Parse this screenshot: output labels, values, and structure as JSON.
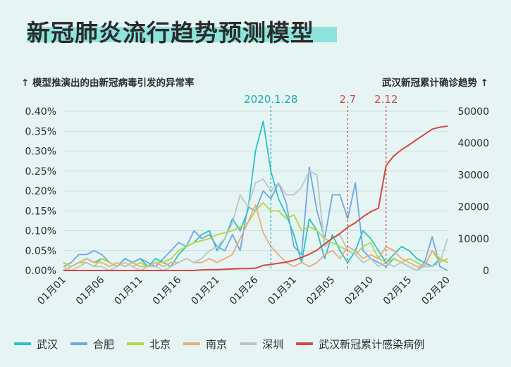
{
  "title": "新冠肺炎流行趋势预测模型",
  "left_axis_note": "↑ 模型推演出的由新冠病毒引发的异常率",
  "right_axis_note": "武汉新冠累计确诊趋势 ↑",
  "colors": {
    "wuhan": "#27c4c7",
    "hefei": "#6fa8e0",
    "beijing": "#b5d63c",
    "nanjing": "#e8ad7a",
    "shenzhen": "#bac6c6",
    "cumulative": "#cf4a45",
    "grid": "#c9dede",
    "marker_teal": "#1fa9ab",
    "marker_red": "#cf4a45"
  },
  "chart_data": {
    "type": "line",
    "x": [
      "01月01",
      "01月02",
      "01月03",
      "01月04",
      "01月05",
      "01月06",
      "01月07",
      "01月08",
      "01月09",
      "01月10",
      "01月11",
      "01月12",
      "01月13",
      "01月14",
      "01月15",
      "01月16",
      "01月17",
      "01月18",
      "01月19",
      "01月20",
      "01月21",
      "01月22",
      "01月23",
      "01月24",
      "01月25",
      "01月26",
      "01月27",
      "01月28",
      "01月29",
      "01月30",
      "01月31",
      "02月01",
      "02月02",
      "02月03",
      "02月04",
      "02月05",
      "02月06",
      "02月07",
      "02月08",
      "02月09",
      "02月10",
      "02月11",
      "02月12",
      "02月13",
      "02月14",
      "02月15",
      "02月16",
      "02月17",
      "02月18",
      "02月19",
      "02月20"
    ],
    "x_ticks": [
      "01月01",
      "01月06",
      "01月11",
      "01月16",
      "01月21",
      "01月26",
      "01月31",
      "02月05",
      "02月10",
      "02月15",
      "02月20"
    ],
    "y_left": {
      "min": 0,
      "max": 0.4,
      "ticks": [
        "0.00%",
        "0.05%",
        "0.10%",
        "0.15%",
        "0.20%",
        "0.25%",
        "0.30%",
        "0.35%",
        "0.40%"
      ]
    },
    "y_right": {
      "min": 0,
      "max": 50000,
      "ticks": [
        "0",
        "10000",
        "20000",
        "30000",
        "40000",
        "50000"
      ]
    },
    "series": [
      {
        "name": "武汉",
        "color_key": "wuhan",
        "axis": "left",
        "values": [
          0.02,
          0.01,
          0.02,
          0.03,
          0.02,
          0.03,
          0.02,
          0.01,
          0.03,
          0.02,
          0.03,
          0.01,
          0.03,
          0.02,
          0.01,
          0.04,
          0.06,
          0.07,
          0.09,
          0.1,
          0.05,
          0.08,
          0.13,
          0.1,
          0.15,
          0.3,
          0.375,
          0.25,
          0.18,
          0.14,
          0.09,
          0.02,
          0.13,
          0.1,
          0.03,
          0.09,
          0.05,
          0.02,
          0.05,
          0.1,
          0.08,
          0.05,
          0.02,
          0.04,
          0.06,
          0.05,
          0.03,
          0.02,
          0.01,
          0.03,
          0.02
        ]
      },
      {
        "name": "合肥",
        "color_key": "hefei",
        "axis": "left",
        "values": [
          0.01,
          0.02,
          0.04,
          0.04,
          0.05,
          0.04,
          0.02,
          0.01,
          0.03,
          0.02,
          0.03,
          0.02,
          0.01,
          0.03,
          0.05,
          0.07,
          0.06,
          0.1,
          0.08,
          0.09,
          0.06,
          0.05,
          0.09,
          0.05,
          0.16,
          0.15,
          0.2,
          0.18,
          0.22,
          0.17,
          0.06,
          0.04,
          0.26,
          0.15,
          0.08,
          0.19,
          0.19,
          0.13,
          0.22,
          0.05,
          0.03,
          0.02,
          0.01,
          0.03,
          0.02,
          0.01,
          0.0,
          0.02,
          0.085,
          0.01,
          0.0
        ]
      },
      {
        "name": "北京",
        "color_key": "beijing",
        "axis": "left",
        "values": [
          0.02,
          0.01,
          0.02,
          0.02,
          0.01,
          0.03,
          0.02,
          0.01,
          0.02,
          0.01,
          0.02,
          0.01,
          0.02,
          0.02,
          0.03,
          0.05,
          0.06,
          0.07,
          0.075,
          0.08,
          0.09,
          0.095,
          0.1,
          0.11,
          0.12,
          0.15,
          0.17,
          0.15,
          0.15,
          0.13,
          0.14,
          0.1,
          0.11,
          0.1,
          0.08,
          0.07,
          0.06,
          0.05,
          0.04,
          0.06,
          0.07,
          0.03,
          0.02,
          0.03,
          0.02,
          0.03,
          0.02,
          0.01,
          0.05,
          0.02,
          0.03
        ]
      },
      {
        "name": "南京",
        "color_key": "nanjing",
        "axis": "left",
        "values": [
          0.0,
          0.01,
          0.02,
          0.03,
          0.02,
          0.02,
          0.01,
          0.02,
          0.01,
          0.02,
          0.01,
          0.01,
          0.02,
          0.01,
          0.02,
          0.02,
          0.03,
          0.02,
          0.02,
          0.03,
          0.02,
          0.03,
          0.04,
          0.08,
          0.12,
          0.165,
          0.095,
          0.06,
          0.04,
          0.02,
          0.01,
          0.02,
          0.01,
          0.02,
          0.04,
          0.05,
          0.03,
          0.06,
          0.05,
          0.03,
          0.04,
          0.03,
          0.06,
          0.05,
          0.03,
          0.02,
          0.01,
          0.01,
          0.05,
          0.03,
          0.02
        ]
      },
      {
        "name": "深圳",
        "color_key": "shenzhen",
        "axis": "left",
        "values": [
          0.01,
          0.0,
          0.01,
          0.02,
          0.01,
          0.01,
          0.0,
          0.01,
          0.02,
          0.01,
          0.0,
          0.01,
          0.01,
          0.0,
          0.01,
          0.02,
          0.03,
          0.02,
          0.03,
          0.05,
          0.06,
          0.08,
          0.12,
          0.19,
          0.16,
          0.22,
          0.23,
          0.2,
          0.22,
          0.19,
          0.19,
          0.21,
          0.25,
          0.24,
          0.06,
          0.08,
          0.09,
          0.05,
          0.04,
          0.02,
          0.03,
          0.01,
          0.02,
          0.01,
          0.02,
          0.01,
          0.0,
          0.01,
          0.01,
          0.02,
          0.08
        ]
      },
      {
        "name": "武汉新冠累计感染病例",
        "color_key": "cumulative",
        "axis": "right",
        "values": [
          0,
          0,
          0,
          0,
          0,
          0,
          0,
          0,
          0,
          0,
          0,
          0,
          0,
          0,
          0,
          0,
          0,
          0,
          200,
          258,
          270,
          375,
          495,
          572,
          618,
          698,
          1590,
          1905,
          2261,
          2639,
          3215,
          4109,
          5142,
          6384,
          8351,
          10117,
          11618,
          13603,
          14982,
          16902,
          18454,
          19558,
          32994,
          35991,
          37914,
          39462,
          41152,
          42752,
          44412,
          45027,
          45346
        ]
      }
    ],
    "annotations": [
      {
        "label": "2020.1.28",
        "x": "01月28",
        "color_key": "marker_teal"
      },
      {
        "label": "2.7",
        "x": "02月07",
        "color_key": "marker_red"
      },
      {
        "label": "2.12",
        "x": "02月12",
        "color_key": "marker_red"
      }
    ]
  }
}
